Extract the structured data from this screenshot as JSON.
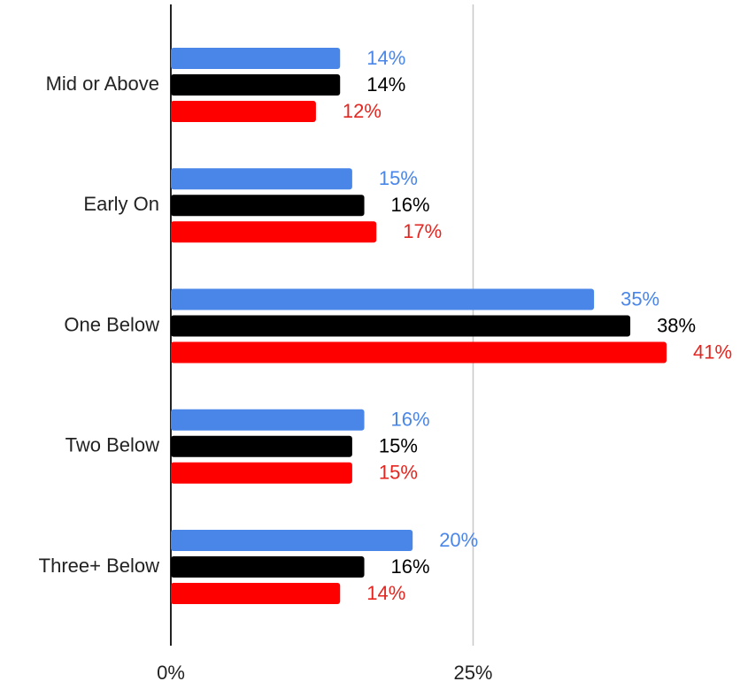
{
  "chart_data": {
    "type": "bar",
    "orientation": "horizontal",
    "categories": [
      "Mid or Above",
      "Early On",
      "One Below",
      "Two Below",
      "Three+ Below"
    ],
    "series": [
      {
        "color": "#4a86e8",
        "values": [
          14,
          15,
          35,
          16,
          20
        ],
        "value_labels": [
          "14%",
          "15%",
          "35%",
          "16%",
          "20%"
        ]
      },
      {
        "color": "#000000",
        "values": [
          14,
          16,
          38,
          15,
          16
        ],
        "value_labels": [
          "14%",
          "16%",
          "38%",
          "15%",
          "16%"
        ]
      },
      {
        "color": "#ff0000",
        "values": [
          12,
          17,
          41,
          15,
          14
        ],
        "value_labels": [
          "12%",
          "17%",
          "41%",
          "15%",
          "14%"
        ]
      }
    ],
    "xlim": [
      0,
      47
    ],
    "xticks": [
      {
        "value": 0,
        "label": "0%"
      },
      {
        "value": 25,
        "label": "25%"
      }
    ],
    "grid": true
  }
}
